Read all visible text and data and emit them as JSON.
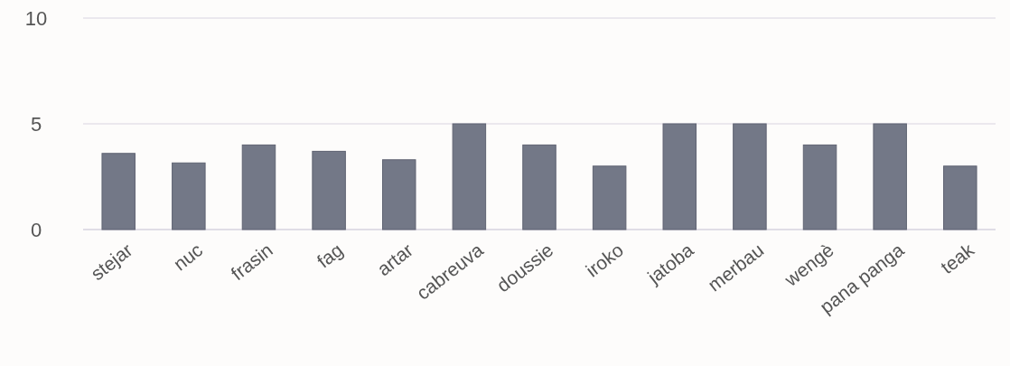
{
  "chart_data": {
    "type": "bar",
    "categories": [
      "stejar",
      "nuc",
      "frasin",
      "fag",
      "artar",
      "cabreuva",
      "doussie",
      "iroko",
      "jatoba",
      "merbau",
      "wengè",
      "pana panga",
      "teak"
    ],
    "values": [
      3.6,
      3.15,
      4,
      3.7,
      3.3,
      5,
      4,
      3,
      5,
      5,
      4,
      5,
      3
    ],
    "color": "#737887",
    "ylim": [
      0,
      10
    ],
    "yticks": [
      0,
      5,
      10
    ],
    "grid": "y"
  }
}
